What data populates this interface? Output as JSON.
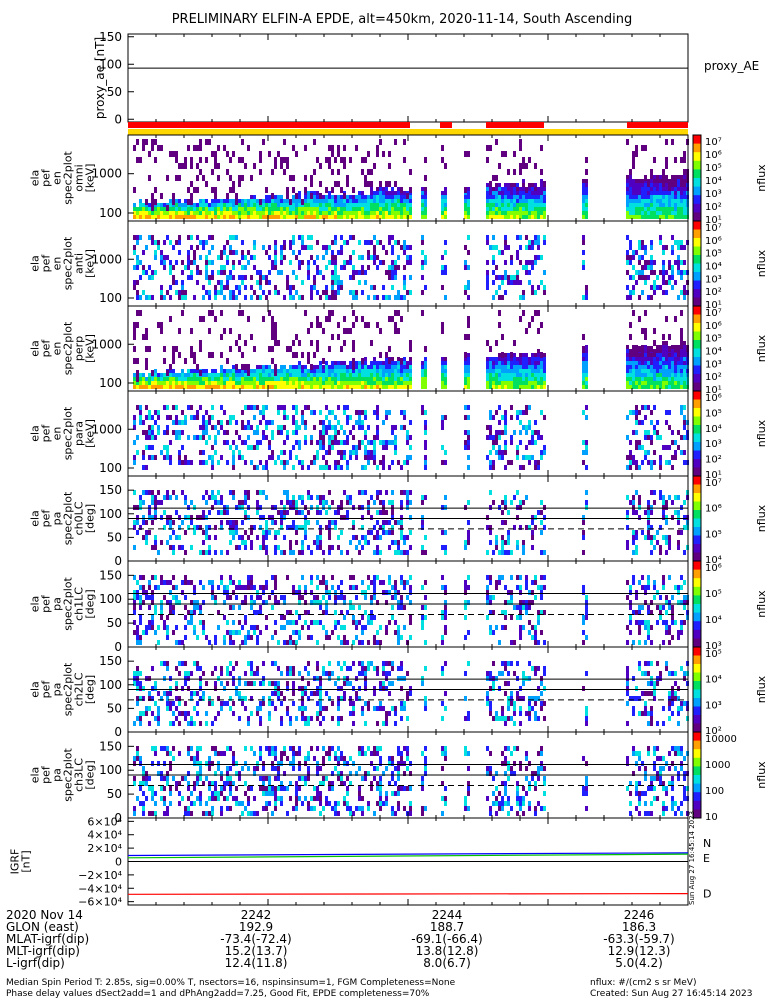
{
  "title": "PRELIMINARY ELFIN-A EPDE, alt=450km, 2020-11-14, South Ascending",
  "chart_data": [
    {
      "type": "line",
      "panel": "proxy_ae",
      "ylabel": "proxy_ae [nT]",
      "legend": "proxy_AE",
      "ylim": [
        -5,
        155
      ],
      "yticks": [
        "150",
        "100",
        "50",
        "0"
      ],
      "series": [
        {
          "name": "proxy_AE",
          "color": "#000000",
          "x": [
            "22:40:00",
            "22:46:40"
          ],
          "values": [
            93,
            93
          ]
        }
      ]
    },
    {
      "type": "heatmap",
      "panel": "ela_pef_en_spec2plot_omni",
      "ylabel": [
        "ela",
        "pef",
        "en",
        "spec2plot",
        "omni",
        "[keV]"
      ],
      "yscale": "log",
      "yticks": [
        "1000",
        "100"
      ],
      "zlabel": "nflux",
      "zscale": "log",
      "zticks": [
        "10⁷",
        "10⁶",
        "10⁵",
        "10⁴",
        "10³",
        "10²",
        "10¹"
      ]
    },
    {
      "type": "heatmap",
      "panel": "ela_pef_en_spec2plot_anti",
      "ylabel": [
        "ela",
        "pef",
        "en",
        "spec2plot",
        "anti",
        "[keV]"
      ],
      "yscale": "log",
      "yticks": [
        "1000",
        "100"
      ],
      "zlabel": "nflux",
      "zscale": "log",
      "zticks": [
        "10⁷",
        "10⁶",
        "10⁵",
        "10⁴",
        "10³",
        "10²",
        "10¹"
      ]
    },
    {
      "type": "heatmap",
      "panel": "ela_pef_en_spec2plot_perp",
      "ylabel": [
        "ela",
        "pef",
        "en",
        "spec2plot",
        "perp",
        "[keV]"
      ],
      "yscale": "log",
      "yticks": [
        "1000",
        "100"
      ],
      "zlabel": "nflux",
      "zscale": "log",
      "zticks": [
        "10⁷",
        "10⁶",
        "10⁵",
        "10⁴",
        "10³",
        "10²",
        "10¹"
      ]
    },
    {
      "type": "heatmap",
      "panel": "ela_pef_en_spec2plot_para",
      "ylabel": [
        "ela",
        "pef",
        "en",
        "spec2plot",
        "para",
        "[keV]"
      ],
      "yscale": "log",
      "yticks": [
        "1000",
        "100"
      ],
      "zlabel": "nflux",
      "zscale": "log",
      "zticks": [
        "10⁶",
        "10⁵",
        "10⁴",
        "10³",
        "10²",
        "10¹"
      ]
    },
    {
      "type": "heatmap",
      "panel": "ela_pef_pa_spec2plot_ch0LC",
      "ylabel": [
        "ela",
        "pef",
        "pa",
        "spec2plot",
        "ch0LC",
        "[deg]"
      ],
      "ylim": [
        0,
        180
      ],
      "yticks": [
        "150",
        "100",
        "50",
        "0"
      ],
      "zlabel": "nflux",
      "zscale": "log",
      "zticks": [
        "10⁷",
        "10⁶",
        "10⁵",
        "10⁴"
      ]
    },
    {
      "type": "heatmap",
      "panel": "ela_pef_pa_spec2plot_ch1LC",
      "ylabel": [
        "ela",
        "pef",
        "pa",
        "spec2plot",
        "ch1LC",
        "[deg]"
      ],
      "ylim": [
        0,
        180
      ],
      "yticks": [
        "150",
        "100",
        "50",
        "0"
      ],
      "zlabel": "nflux",
      "zscale": "log",
      "zticks": [
        "10⁶",
        "10⁵",
        "10⁴",
        "10³"
      ]
    },
    {
      "type": "heatmap",
      "panel": "ela_pef_pa_spec2plot_ch2LC",
      "ylabel": [
        "ela",
        "pef",
        "pa",
        "spec2plot",
        "ch2LC",
        "[deg]"
      ],
      "ylim": [
        0,
        180
      ],
      "yticks": [
        "150",
        "100",
        "50",
        "0"
      ],
      "zlabel": "nflux",
      "zscale": "log",
      "zticks": [
        "10⁵",
        "10⁴",
        "10³",
        "10²"
      ]
    },
    {
      "type": "heatmap",
      "panel": "ela_pef_pa_spec2plot_ch3LC",
      "ylabel": [
        "ela",
        "pef",
        "pa",
        "spec2plot",
        "ch3LC",
        "[deg]"
      ],
      "ylim": [
        0,
        180
      ],
      "yticks": [
        "150",
        "100",
        "50",
        "0"
      ],
      "zlabel": "nflux",
      "zscale": "log",
      "zticks": [
        "10000",
        "1000",
        "100",
        "10"
      ]
    },
    {
      "type": "line",
      "panel": "igrf",
      "ylabel": [
        "IGRF",
        "[nT]"
      ],
      "ylim": [
        -65000,
        65000
      ],
      "yticks": [
        "6×10⁴",
        "4×10⁴",
        "2×10⁴",
        "0",
        "−2×10⁴",
        "−4×10⁴",
        "−6×10⁴"
      ],
      "series": [
        {
          "name": "N",
          "color": "#0000ff",
          "x": [
            "22:40:00",
            "22:46:40"
          ],
          "values": [
            9000,
            13000
          ]
        },
        {
          "name": "E",
          "color": "#00c000",
          "x": [
            "22:40:00",
            "22:46:40"
          ],
          "values": [
            5500,
            11000
          ]
        },
        {
          "name": "D",
          "color": "#ff0000",
          "x": [
            "22:40:00",
            "22:46:40"
          ],
          "values": [
            -49000,
            -48000
          ]
        }
      ]
    }
  ],
  "colors": {
    "science_bar": "#ff0000",
    "coverage_bar": "#ffd700",
    "colorbar": [
      "#600080",
      "#5000c0",
      "#2020ff",
      "#00a0ff",
      "#00e0e0",
      "#00e060",
      "#80ff00",
      "#ffff00",
      "#ffa000",
      "#ff0000"
    ]
  },
  "timestamp_vertical": "Sun Aug 27 16:45:14 2023",
  "footer": {
    "date_label": "2020 Nov 14",
    "times": [
      "2242",
      "2244",
      "2246"
    ],
    "rows": [
      {
        "label": "GLON (east)",
        "values": [
          "192.9",
          "188.7",
          "186.3"
        ]
      },
      {
        "label": "MLAT-igrf(dip)",
        "values": [
          "-73.4(-72.4)",
          "-69.1(-66.4)",
          "-63.3(-59.7)"
        ]
      },
      {
        "label": "MLT-igrf(dip)",
        "values": [
          "15.2(13.7)",
          "13.8(12.8)",
          "12.9(12.3)"
        ]
      },
      {
        "label": "L-igrf(dip)",
        "values": [
          "12.4(11.8)",
          "8.0(6.7)",
          "5.0(4.2)"
        ]
      }
    ],
    "note1": "Median Spin Period T: 2.85s, sig=0.00% T, nsectors=16, nspinsinsum=1, FGM Completeness=None",
    "note2": "Phase delay values dSect2add=1 and dPhAng2add=7.25, Good Fit, EPDE completeness=70%",
    "units": "nflux: #/(cm2 s sr MeV)",
    "created": "Created: Sun Aug 27 16:45:14 2023"
  }
}
